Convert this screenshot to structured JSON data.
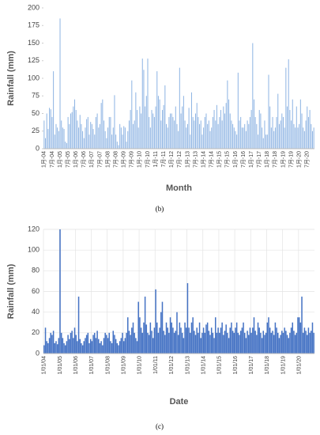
{
  "chart_data": [
    {
      "type": "bar",
      "caption": "(b)",
      "ylabel": "Rainfall (mm)",
      "xlabel": "Month",
      "color": "#8eb4e3",
      "grid": false,
      "ylim": [
        0,
        200
      ],
      "yticks": [
        0,
        25,
        50,
        75,
        100,
        125,
        150,
        175,
        200
      ],
      "categories": [
        "1月-04",
        null,
        null,
        null,
        null,
        null,
        "7月-04",
        null,
        null,
        null,
        null,
        null,
        "1月-05",
        null,
        null,
        null,
        null,
        null,
        "7月-05",
        null,
        null,
        null,
        null,
        null,
        "1月-06",
        null,
        null,
        null,
        null,
        null,
        "7月-06",
        null,
        null,
        null,
        null,
        null,
        "1月-07",
        null,
        null,
        null,
        null,
        null,
        "7月-07",
        null,
        null,
        null,
        null,
        null,
        "1月-08",
        null,
        null,
        null,
        null,
        null,
        "7月-08",
        null,
        null,
        null,
        null,
        null,
        "1月-09",
        null,
        null,
        null,
        null,
        null,
        "7月-09",
        null,
        null,
        null,
        null,
        null,
        "1月-10",
        null,
        null,
        null,
        null,
        null,
        "7月-10",
        null,
        null,
        null,
        null,
        null,
        "1月-11",
        null,
        null,
        null,
        null,
        null,
        "7月-11",
        null,
        null,
        null,
        null,
        null,
        "1月-12",
        null,
        null,
        null,
        null,
        null,
        "7月-12",
        null,
        null,
        null,
        null,
        null,
        "1月-13",
        null,
        null,
        null,
        null,
        null,
        "7月-13",
        null,
        null,
        null,
        null,
        null,
        "1月-14",
        null,
        null,
        null,
        null,
        null,
        "7月-14",
        null,
        null,
        null,
        null,
        null,
        "1月-15",
        null,
        null,
        null,
        null,
        null,
        "7月-15",
        null,
        null,
        null,
        null,
        null,
        "1月-16",
        null,
        null,
        null,
        null,
        null,
        "7月-16",
        null,
        null,
        null,
        null,
        null,
        "1月-17",
        null,
        null,
        null,
        null,
        null,
        "7月-17",
        null,
        null,
        null,
        null,
        null,
        "1月-18",
        null,
        null,
        null,
        null,
        null,
        "7月-18",
        null,
        null,
        null,
        null,
        null,
        "1月-19",
        null,
        null,
        null,
        null,
        null,
        "7月-19",
        null,
        null,
        null,
        null,
        null,
        "1月-20",
        null,
        null,
        null,
        null,
        null,
        "7月-20",
        null,
        null,
        null,
        null,
        null
      ],
      "values": [
        40,
        15,
        50,
        28,
        58,
        56,
        45,
        110,
        20,
        35,
        30,
        25,
        185,
        40,
        30,
        28,
        10,
        8,
        45,
        35,
        50,
        52,
        60,
        70,
        55,
        40,
        30,
        48,
        35,
        25,
        15,
        30,
        42,
        45,
        20,
        38,
        35,
        28,
        20,
        45,
        50,
        30,
        35,
        65,
        70,
        40,
        25,
        15,
        30,
        45,
        45,
        20,
        30,
        76,
        20,
        10,
        5,
        35,
        30,
        20,
        32,
        30,
        10,
        25,
        40,
        55,
        97,
        35,
        40,
        80,
        55,
        30,
        60,
        50,
        128,
        112,
        60,
        75,
        128,
        45,
        30,
        55,
        50,
        45,
        60,
        110,
        75,
        70,
        40,
        55,
        62,
        90,
        35,
        30,
        45,
        50,
        50,
        45,
        40,
        60,
        35,
        25,
        115,
        50,
        60,
        75,
        40,
        30,
        35,
        58,
        20,
        80,
        45,
        40,
        50,
        65,
        45,
        35,
        40,
        20,
        30,
        45,
        50,
        35,
        40,
        25,
        30,
        45,
        55,
        40,
        62,
        35,
        45,
        55,
        40,
        60,
        50,
        65,
        97,
        70,
        50,
        40,
        35,
        30,
        25,
        20,
        108,
        40,
        45,
        30,
        30,
        35,
        25,
        40,
        35,
        45,
        55,
        150,
        70,
        45,
        35,
        20,
        55,
        50,
        30,
        15,
        40,
        20,
        20,
        105,
        60,
        30,
        45,
        25,
        30,
        45,
        78,
        35,
        40,
        50,
        45,
        30,
        115,
        60,
        127,
        55,
        40,
        70,
        35,
        30,
        60,
        30,
        35,
        70,
        50,
        30,
        25,
        40,
        60,
        45,
        55,
        35,
        25,
        30
      ]
    },
    {
      "type": "bar",
      "caption": "(c)",
      "ylabel": "Rainfall (mm)",
      "xlabel": "Date",
      "color": "#4472c4",
      "grid": true,
      "ylim": [
        0,
        120
      ],
      "yticks": [
        0,
        20,
        40,
        60,
        80,
        100,
        120
      ],
      "categories": [
        "1/01/04",
        null,
        null,
        null,
        null,
        null,
        null,
        null,
        null,
        null,
        null,
        null,
        "1/01/05",
        null,
        null,
        null,
        null,
        null,
        null,
        null,
        null,
        null,
        null,
        null,
        "1/01/06",
        null,
        null,
        null,
        null,
        null,
        null,
        null,
        null,
        null,
        null,
        null,
        "1/01/07",
        null,
        null,
        null,
        null,
        null,
        null,
        null,
        null,
        null,
        null,
        null,
        "1/01/08",
        null,
        null,
        null,
        null,
        null,
        null,
        null,
        null,
        null,
        null,
        null,
        "1/01/09",
        null,
        null,
        null,
        null,
        null,
        null,
        null,
        null,
        null,
        null,
        null,
        "1/01/10",
        null,
        null,
        null,
        null,
        null,
        null,
        null,
        null,
        null,
        null,
        null,
        "1/01/11",
        null,
        null,
        null,
        null,
        null,
        null,
        null,
        null,
        null,
        null,
        null,
        "1/01/12",
        null,
        null,
        null,
        null,
        null,
        null,
        null,
        null,
        null,
        null,
        null,
        "1/01/13",
        null,
        null,
        null,
        null,
        null,
        null,
        null,
        null,
        null,
        null,
        null,
        "1/01/14",
        null,
        null,
        null,
        null,
        null,
        null,
        null,
        null,
        null,
        null,
        null,
        "1/01/15",
        null,
        null,
        null,
        null,
        null,
        null,
        null,
        null,
        null,
        null,
        null,
        "1/01/16",
        null,
        null,
        null,
        null,
        null,
        null,
        null,
        null,
        null,
        null,
        null,
        "1/01/17",
        null,
        null,
        null,
        null,
        null,
        null,
        null,
        null,
        null,
        null,
        null,
        "1/01/18",
        null,
        null,
        null,
        null,
        null,
        null,
        null,
        null,
        null,
        null,
        null,
        "1/01/19",
        null,
        null,
        null,
        null,
        null,
        null,
        null,
        null,
        null,
        null,
        null,
        "1/01/20",
        null,
        null,
        null,
        null,
        null,
        null,
        null,
        null,
        null,
        null,
        null
      ],
      "values": [
        8,
        25,
        12,
        10,
        15,
        20,
        18,
        22,
        10,
        12,
        9,
        15,
        120,
        20,
        15,
        10,
        8,
        12,
        18,
        14,
        20,
        22,
        15,
        25,
        18,
        12,
        55,
        14,
        10,
        8,
        12,
        15,
        18,
        20,
        10,
        14,
        12,
        18,
        20,
        15,
        22,
        14,
        10,
        12,
        8,
        15,
        20,
        18,
        15,
        20,
        12,
        10,
        22,
        18,
        14,
        10,
        8,
        12,
        15,
        20,
        12,
        15,
        20,
        35,
        22,
        18,
        25,
        30,
        20,
        15,
        12,
        50,
        35,
        25,
        20,
        30,
        55,
        28,
        20,
        18,
        30,
        22,
        15,
        25,
        62,
        30,
        20,
        25,
        40,
        50,
        22,
        18,
        30,
        25,
        20,
        35,
        30,
        25,
        20,
        22,
        40,
        18,
        30,
        25,
        20,
        15,
        30,
        25,
        68,
        25,
        20,
        30,
        35,
        22,
        18,
        25,
        20,
        30,
        15,
        20,
        25,
        20,
        28,
        30,
        22,
        18,
        25,
        20,
        15,
        35,
        20,
        25,
        20,
        25,
        30,
        18,
        22,
        28,
        20,
        15,
        25,
        30,
        22,
        20,
        25,
        30,
        20,
        18,
        22,
        25,
        30,
        20,
        15,
        22,
        18,
        25,
        20,
        25,
        35,
        22,
        18,
        30,
        25,
        20,
        15,
        22,
        18,
        20,
        30,
        35,
        25,
        20,
        22,
        18,
        30,
        25,
        20,
        15,
        18,
        22,
        20,
        25,
        22,
        18,
        15,
        20,
        25,
        30,
        22,
        18,
        20,
        35,
        35,
        30,
        55,
        20,
        25,
        22,
        18,
        25,
        20,
        22,
        30,
        20
      ]
    }
  ]
}
